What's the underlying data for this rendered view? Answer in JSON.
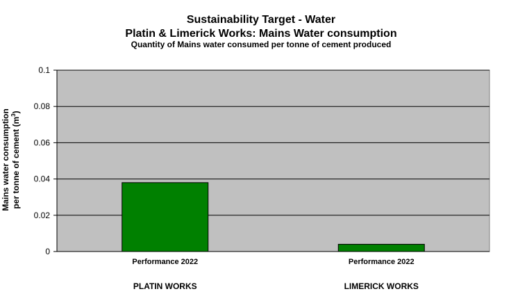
{
  "chart_data": {
    "type": "bar",
    "title": "Sustainability Target - Water",
    "subtitle": "Platin & Limerick Works: Mains Water consumption",
    "caption": "Quantity of Mains water consumed per tonne of cement produced",
    "ylabel_line1": "Mains water consumption",
    "ylabel_line2_prefix": "per tonne of cement (m",
    "ylabel_line2_sup": "3",
    "ylabel_line2_suffix": ")",
    "categories": [
      "Performance 2022",
      "Performance 2022"
    ],
    "groups": [
      "PLATIN WORKS",
      "LIMERICK WORKS"
    ],
    "values": [
      0.038,
      0.004
    ],
    "ylim": [
      0,
      0.1
    ],
    "yticks": [
      "0",
      "0.02",
      "0.04",
      "0.06",
      "0.08",
      "0.1"
    ],
    "grid": true,
    "colors": {
      "plot_bg": "#C0C0C0",
      "bar": "#008000",
      "outline": "#000000"
    }
  }
}
